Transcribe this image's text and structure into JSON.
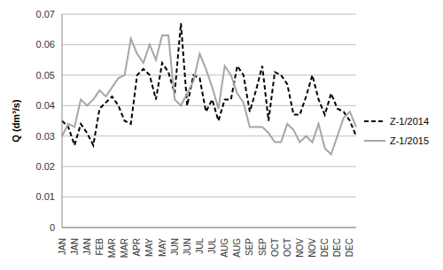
{
  "chart_data": {
    "type": "line",
    "y_label": "Q (dm³/s)",
    "categories": [
      "JAN",
      null,
      "JAN",
      null,
      "JAN",
      null,
      "FEB",
      null,
      "MAR",
      null,
      "MAR",
      null,
      "APR",
      null,
      "MAY",
      null,
      "MAY",
      null,
      "JUN",
      null,
      "JUN",
      null,
      "JUL",
      null,
      "JUL",
      null,
      "AUG",
      null,
      "AUG",
      null,
      "SEP",
      null,
      "SEP",
      null,
      "OCT",
      null,
      "OCT",
      null,
      "NOV",
      null,
      "NOV",
      null,
      "DEC",
      null,
      "DEC",
      null,
      "DEC",
      null
    ],
    "series": [
      {
        "name": "Z-1/2014",
        "color": "#000000",
        "line_style": "dashed",
        "values": [
          0.035,
          0.033,
          0.027,
          0.034,
          0.031,
          0.027,
          0.039,
          0.041,
          0.043,
          0.04,
          0.035,
          0.034,
          0.05,
          0.052,
          0.05,
          0.042,
          0.054,
          0.051,
          0.044,
          0.067,
          0.04,
          0.05,
          0.049,
          0.038,
          0.042,
          0.035,
          0.042,
          0.042,
          0.053,
          0.05,
          0.038,
          0.045,
          0.053,
          0.035,
          0.051,
          0.05,
          0.047,
          0.037,
          0.037,
          0.043,
          0.05,
          0.042,
          0.037,
          0.044,
          0.039,
          0.038,
          0.035,
          0.03
        ]
      },
      {
        "name": "Z-1/2015",
        "color": "#a6a6a6",
        "line_style": "solid",
        "values": [
          0.03,
          0.034,
          0.033,
          0.042,
          0.04,
          0.042,
          0.045,
          0.043,
          0.046,
          0.049,
          0.05,
          0.062,
          0.057,
          0.054,
          0.06,
          0.055,
          0.063,
          0.063,
          0.042,
          0.04,
          0.044,
          0.048,
          0.057,
          0.052,
          0.046,
          0.039,
          0.053,
          0.05,
          0.044,
          0.041,
          0.033,
          0.033,
          0.033,
          0.031,
          0.028,
          0.028,
          0.034,
          0.032,
          0.028,
          0.03,
          0.028,
          0.034,
          0.026,
          0.024,
          0.03,
          0.036,
          0.038,
          0.033
        ]
      }
    ],
    "ylim": [
      0,
      0.07
    ],
    "yticks": [
      0,
      0.01,
      0.02,
      0.03,
      0.04,
      0.05,
      0.06,
      0.07
    ],
    "grid": true,
    "legend": "right"
  }
}
